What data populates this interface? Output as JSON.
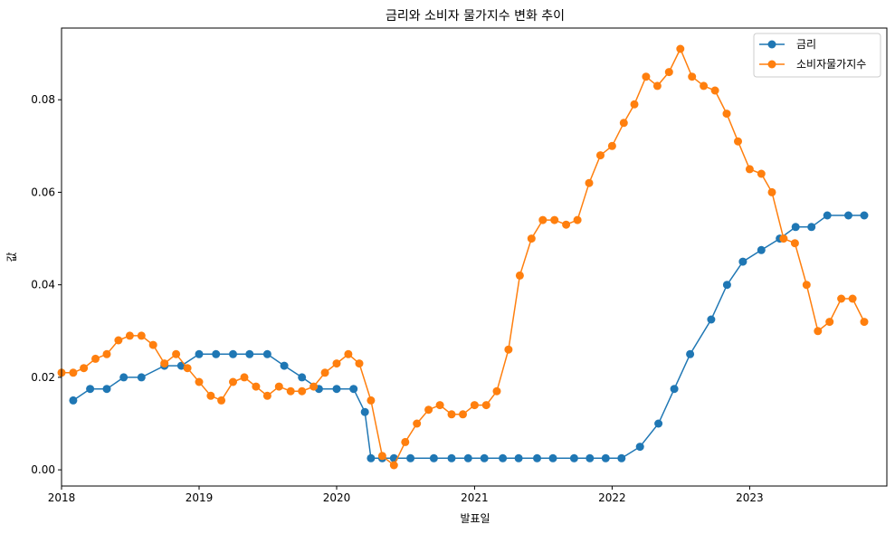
{
  "chart_data": {
    "type": "line",
    "title": "금리와 소비자 물가지수 변화 추이",
    "xlabel": "발표일",
    "ylabel": "값",
    "x_ticks": [
      "2018",
      "2019",
      "2020",
      "2021",
      "2022",
      "2023"
    ],
    "y_ticks": [
      "0.00",
      "0.02",
      "0.04",
      "0.06",
      "0.08"
    ],
    "xlim": [
      "2018-01-01",
      "2023-12-31"
    ],
    "ylim": [
      -0.0035,
      0.0955
    ],
    "grid": false,
    "legend_position": "top-right",
    "series": [
      {
        "name": "금리",
        "color": "#1f77b4",
        "marker": "circle",
        "points": [
          [
            "2018-02-01",
            0.015
          ],
          [
            "2018-03-18",
            0.0175
          ],
          [
            "2018-05-01",
            0.0175
          ],
          [
            "2018-06-15",
            0.02
          ],
          [
            "2018-08-01",
            0.02
          ],
          [
            "2018-10-01",
            0.0225
          ],
          [
            "2018-11-15",
            0.0225
          ],
          [
            "2019-01-01",
            0.025
          ],
          [
            "2019-02-15",
            0.025
          ],
          [
            "2019-04-01",
            0.025
          ],
          [
            "2019-05-15",
            0.025
          ],
          [
            "2019-07-01",
            0.025
          ],
          [
            "2019-08-15",
            0.0225
          ],
          [
            "2019-10-01",
            0.02
          ],
          [
            "2019-11-15",
            0.0175
          ],
          [
            "2020-01-01",
            0.0175
          ],
          [
            "2020-02-15",
            0.0175
          ],
          [
            "2020-03-16",
            0.0125
          ],
          [
            "2020-04-01",
            0.0025
          ],
          [
            "2020-05-01",
            0.0025
          ],
          [
            "2020-06-01",
            0.0025
          ],
          [
            "2020-07-15",
            0.0025
          ],
          [
            "2020-09-15",
            0.0025
          ],
          [
            "2020-11-01",
            0.0025
          ],
          [
            "2020-12-15",
            0.0025
          ],
          [
            "2021-01-27",
            0.0025
          ],
          [
            "2021-03-17",
            0.0025
          ],
          [
            "2021-04-28",
            0.0025
          ],
          [
            "2021-06-16",
            0.0025
          ],
          [
            "2021-07-28",
            0.0025
          ],
          [
            "2021-09-22",
            0.0025
          ],
          [
            "2021-11-03",
            0.0025
          ],
          [
            "2021-12-15",
            0.0025
          ],
          [
            "2022-01-26",
            0.0025
          ],
          [
            "2022-03-16",
            0.005
          ],
          [
            "2022-05-04",
            0.01
          ],
          [
            "2022-06-15",
            0.0175
          ],
          [
            "2022-07-27",
            0.025
          ],
          [
            "2022-09-21",
            0.0325
          ],
          [
            "2022-11-02",
            0.04
          ],
          [
            "2022-12-14",
            0.045
          ],
          [
            "2023-02-01",
            0.0475
          ],
          [
            "2023-03-22",
            0.05
          ],
          [
            "2023-05-03",
            0.0525
          ],
          [
            "2023-06-14",
            0.0525
          ],
          [
            "2023-07-26",
            0.055
          ],
          [
            "2023-09-20",
            0.055
          ],
          [
            "2023-11-01",
            0.055
          ]
        ]
      },
      {
        "name": "소비자물가지수",
        "color": "#ff7f0e",
        "marker": "circle",
        "points": [
          [
            "2018-01-01",
            0.021
          ],
          [
            "2018-02-01",
            0.021
          ],
          [
            "2018-03-01",
            0.022
          ],
          [
            "2018-04-01",
            0.024
          ],
          [
            "2018-05-01",
            0.025
          ],
          [
            "2018-06-01",
            0.028
          ],
          [
            "2018-07-01",
            0.029
          ],
          [
            "2018-08-01",
            0.029
          ],
          [
            "2018-09-01",
            0.027
          ],
          [
            "2018-10-01",
            0.023
          ],
          [
            "2018-11-01",
            0.025
          ],
          [
            "2018-12-01",
            0.022
          ],
          [
            "2019-01-01",
            0.019
          ],
          [
            "2019-02-01",
            0.016
          ],
          [
            "2019-03-01",
            0.015
          ],
          [
            "2019-04-01",
            0.019
          ],
          [
            "2019-05-01",
            0.02
          ],
          [
            "2019-06-01",
            0.018
          ],
          [
            "2019-07-01",
            0.016
          ],
          [
            "2019-08-01",
            0.018
          ],
          [
            "2019-09-01",
            0.017
          ],
          [
            "2019-10-01",
            0.017
          ],
          [
            "2019-11-01",
            0.018
          ],
          [
            "2019-12-01",
            0.021
          ],
          [
            "2020-01-01",
            0.023
          ],
          [
            "2020-02-01",
            0.025
          ],
          [
            "2020-03-01",
            0.023
          ],
          [
            "2020-04-01",
            0.015
          ],
          [
            "2020-05-01",
            0.003
          ],
          [
            "2020-06-01",
            0.001
          ],
          [
            "2020-07-01",
            0.006
          ],
          [
            "2020-08-01",
            0.01
          ],
          [
            "2020-09-01",
            0.013
          ],
          [
            "2020-10-01",
            0.014
          ],
          [
            "2020-11-01",
            0.012
          ],
          [
            "2020-12-01",
            0.012
          ],
          [
            "2021-01-01",
            0.014
          ],
          [
            "2021-02-01",
            0.014
          ],
          [
            "2021-03-01",
            0.017
          ],
          [
            "2021-04-01",
            0.026
          ],
          [
            "2021-05-01",
            0.042
          ],
          [
            "2021-06-01",
            0.05
          ],
          [
            "2021-07-01",
            0.054
          ],
          [
            "2021-08-01",
            0.054
          ],
          [
            "2021-09-01",
            0.053
          ],
          [
            "2021-10-01",
            0.054
          ],
          [
            "2021-11-01",
            0.062
          ],
          [
            "2021-12-01",
            0.068
          ],
          [
            "2022-01-01",
            0.07
          ],
          [
            "2022-02-01",
            0.075
          ],
          [
            "2022-03-01",
            0.079
          ],
          [
            "2022-04-01",
            0.085
          ],
          [
            "2022-05-01",
            0.083
          ],
          [
            "2022-06-01",
            0.086
          ],
          [
            "2022-07-01",
            0.091
          ],
          [
            "2022-08-01",
            0.085
          ],
          [
            "2022-09-01",
            0.083
          ],
          [
            "2022-10-01",
            0.082
          ],
          [
            "2022-11-01",
            0.077
          ],
          [
            "2022-12-01",
            0.071
          ],
          [
            "2023-01-01",
            0.065
          ],
          [
            "2023-02-01",
            0.064
          ],
          [
            "2023-03-01",
            0.06
          ],
          [
            "2023-04-01",
            0.05
          ],
          [
            "2023-05-01",
            0.049
          ],
          [
            "2023-06-01",
            0.04
          ],
          [
            "2023-07-01",
            0.03
          ],
          [
            "2023-08-01",
            0.032
          ],
          [
            "2023-09-01",
            0.037
          ],
          [
            "2023-10-01",
            0.037
          ],
          [
            "2023-11-01",
            0.032
          ]
        ]
      }
    ]
  }
}
